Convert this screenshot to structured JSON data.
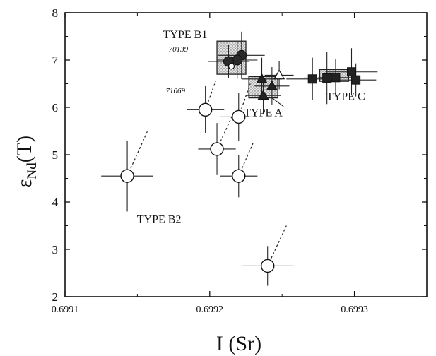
{
  "chart_data": {
    "type": "scatter",
    "title": "",
    "xlabel": "I (Sr)",
    "ylabel_main": "ε",
    "ylabel_sub": "Nd",
    "ylabel_tail": "(T)",
    "xlim": [
      0.6991,
      0.69935
    ],
    "ylim": [
      2,
      8
    ],
    "x_ticks": [
      {
        "value": 0.6991,
        "label": "0.6991"
      },
      {
        "value": 0.6992,
        "label": "0.6992"
      },
      {
        "value": 0.6993,
        "label": "0.6993"
      }
    ],
    "y_ticks": [
      {
        "value": 2,
        "label": "2"
      },
      {
        "value": 3,
        "label": "3"
      },
      {
        "value": 4,
        "label": "4"
      },
      {
        "value": 5,
        "label": "5"
      },
      {
        "value": 6,
        "label": "6"
      },
      {
        "value": 7,
        "label": "7"
      },
      {
        "value": 8,
        "label": "8"
      }
    ],
    "groups": [
      {
        "label": "TYPE B1",
        "label_x": 0.699183,
        "label_y": 7.55
      },
      {
        "label": "TYPE A",
        "label_x": 0.699237,
        "label_y": 5.9
      },
      {
        "label": "TYPE C",
        "label_x": 0.699294,
        "label_y": 6.25
      },
      {
        "label": "TYPE B2",
        "label_x": 0.699165,
        "label_y": 3.65
      }
    ],
    "sample_labels": [
      {
        "label": "70139",
        "x": 0.699185,
        "y": 7.18
      },
      {
        "label": "71069",
        "x": 0.699183,
        "y": 6.3
      }
    ],
    "boxes": [
      {
        "group": "TYPE B1",
        "x0": 0.699205,
        "x1": 0.699225,
        "y0": 6.7,
        "y1": 7.4
      },
      {
        "group": "TYPE A",
        "x0": 0.699227,
        "x1": 0.699247,
        "y0": 6.2,
        "y1": 6.65
      },
      {
        "group": "TYPE C",
        "x0": 0.699276,
        "x1": 0.699296,
        "y0": 6.55,
        "y1": 6.8
      }
    ],
    "series": [
      {
        "group": "TYPE B2",
        "marker": "open-circle",
        "points": [
          {
            "x": 0.699143,
            "y": 4.55,
            "xerr": 1.8e-05,
            "yerr": 0.75,
            "trend": [
              0.699157,
              5.5
            ]
          },
          {
            "x": 0.699197,
            "y": 5.95,
            "xerr": 1.3e-05,
            "yerr": 0.5,
            "trend": [
              0.699204,
              6.55
            ]
          },
          {
            "x": 0.699205,
            "y": 5.12,
            "xerr": 1.3e-05,
            "yerr": 0.55,
            "trend": [
              0.699216,
              5.85
            ]
          },
          {
            "x": 0.69922,
            "y": 5.8,
            "xerr": 1.3e-05,
            "yerr": 0.5,
            "trend": [
              0.699228,
              6.5
            ]
          },
          {
            "x": 0.69922,
            "y": 4.55,
            "xerr": 1.3e-05,
            "yerr": 0.45,
            "trend": [
              0.69923,
              5.25
            ]
          },
          {
            "x": 0.69924,
            "y": 2.65,
            "xerr": 1.8e-05,
            "yerr": 0.42,
            "trend": [
              0.699253,
              3.5
            ]
          }
        ]
      },
      {
        "group": "TYPE B1",
        "marker": "filled-circle",
        "points": [
          {
            "x": 0.699222,
            "y": 7.1,
            "xerr": 1.6e-05,
            "yerr": 0.5
          },
          {
            "x": 0.699219,
            "y": 7.0,
            "xerr": 1.4e-05,
            "yerr": 0.4
          },
          {
            "x": 0.699213,
            "y": 6.97,
            "xerr": 1.4e-05,
            "yerr": 0.35
          }
        ]
      },
      {
        "group": "TYPE B1",
        "marker": "open-small-circle",
        "points": [
          {
            "x": 0.699215,
            "y": 6.87
          }
        ]
      },
      {
        "group": "TYPE A",
        "marker": "filled-triangle",
        "points": [
          {
            "x": 0.699236,
            "y": 6.6,
            "xerr": 1.4e-05,
            "yerr": 0.45
          },
          {
            "x": 0.699243,
            "y": 6.45,
            "xerr": 1.2e-05,
            "yerr": 0.4
          },
          {
            "x": 0.699237,
            "y": 6.25,
            "xerr": 1.2e-05,
            "yerr": 0.4
          }
        ]
      },
      {
        "group": "TYPE A",
        "marker": "open-triangle",
        "points": [
          {
            "x": 0.699248,
            "y": 6.68,
            "xerr": 1e-05,
            "yerr": 0.3
          }
        ]
      },
      {
        "group": "TYPE C",
        "marker": "filled-square",
        "points": [
          {
            "x": 0.699271,
            "y": 6.6,
            "xerr": 1.8e-05,
            "yerr": 0.45
          },
          {
            "x": 0.699281,
            "y": 6.62,
            "xerr": 1.6e-05,
            "yerr": 0.55
          },
          {
            "x": 0.699287,
            "y": 6.63,
            "xerr": 1.2e-05,
            "yerr": 0.4
          },
          {
            "x": 0.699298,
            "y": 6.75,
            "xerr": 1.8e-05,
            "yerr": 0.5
          },
          {
            "x": 0.699301,
            "y": 6.58,
            "xerr": 1.4e-05,
            "yerr": 0.35
          }
        ]
      }
    ],
    "grid": false,
    "legend": "none"
  }
}
